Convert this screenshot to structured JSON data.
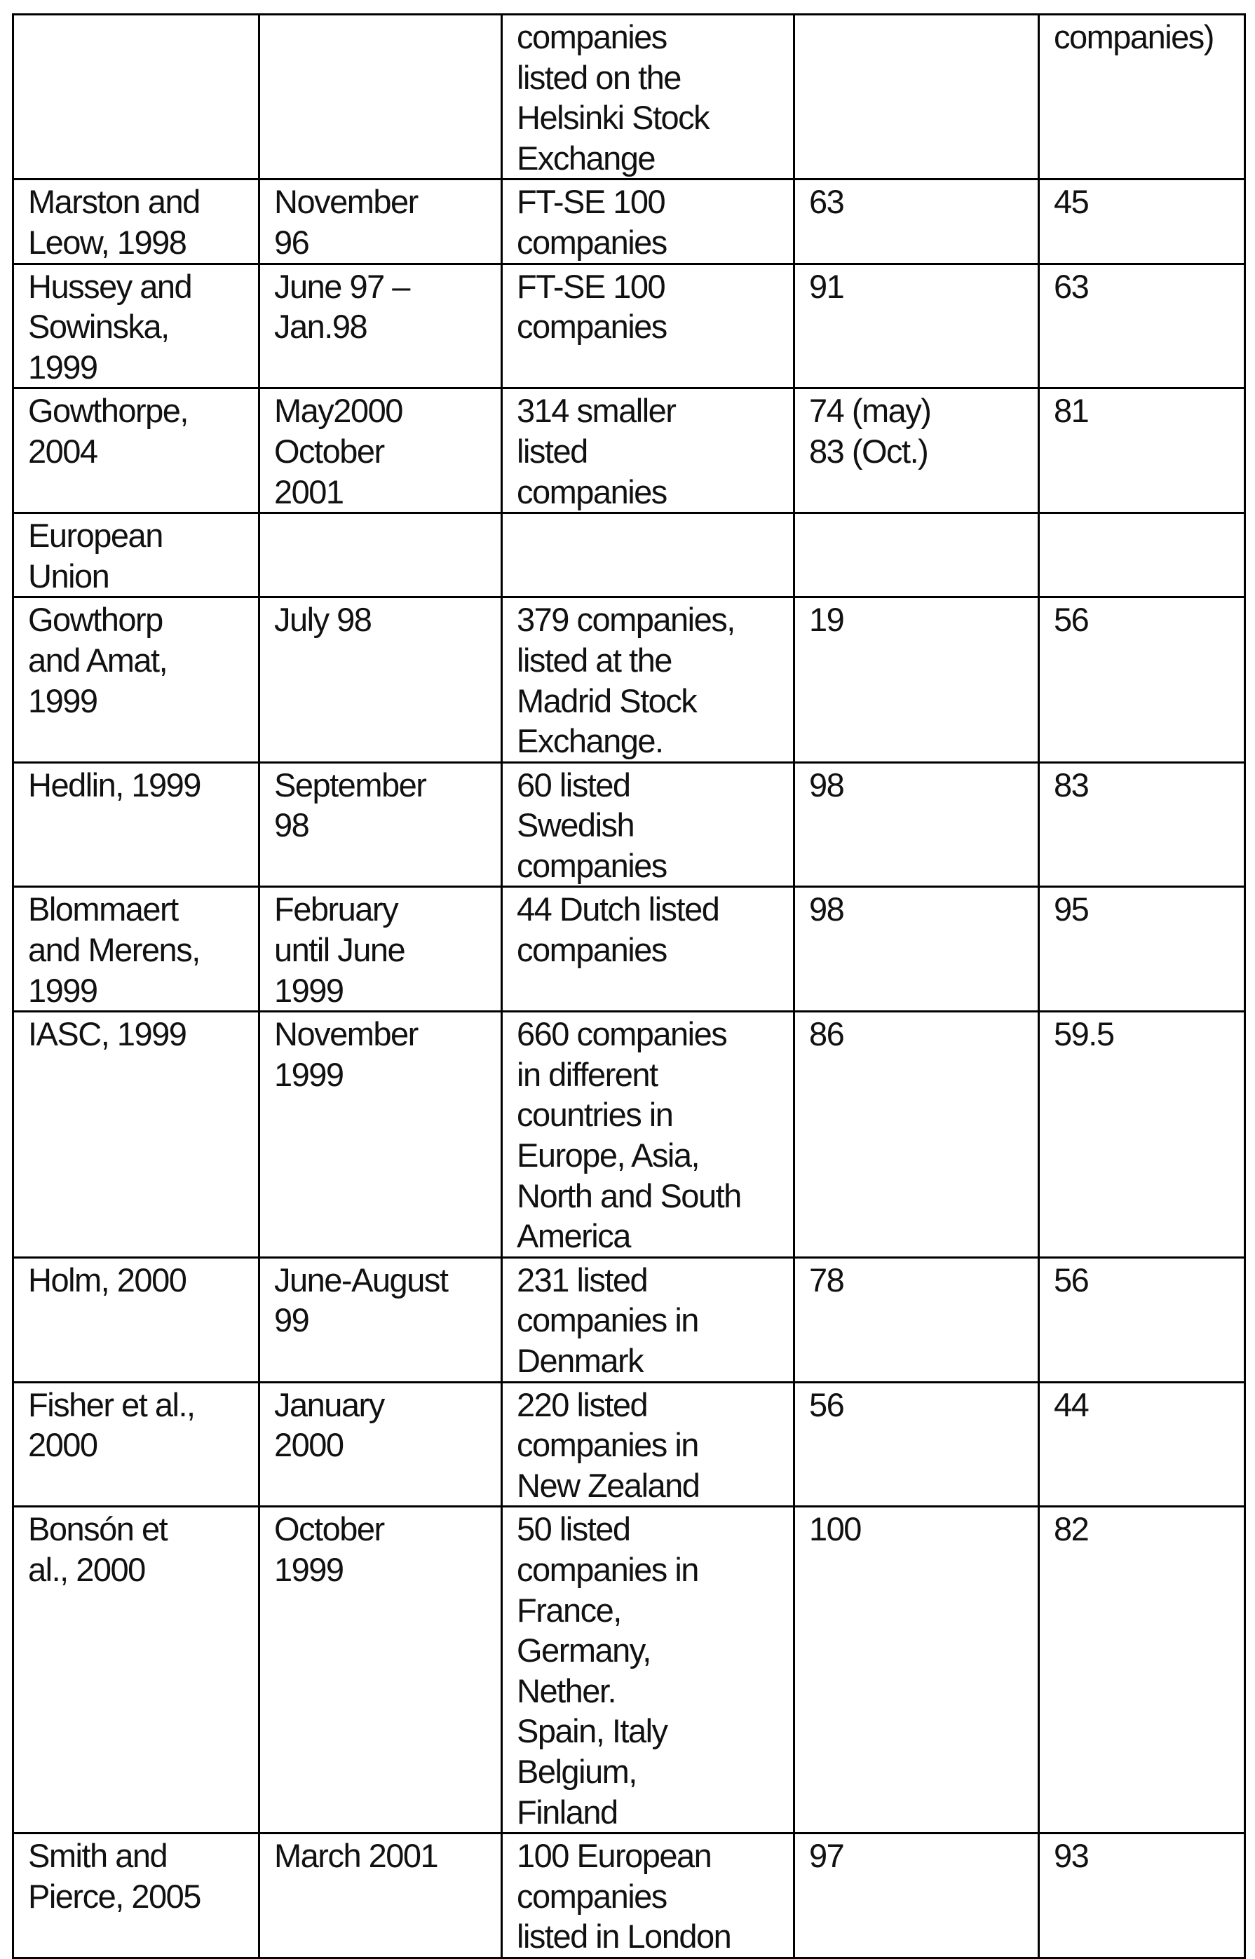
{
  "table": {
    "rows": [
      [
        "",
        "",
        "companies\nlisted on the\nHelsinki Stock\nExchange",
        "",
        "companies)"
      ],
      [
        "Marston and\nLeow, 1998",
        "November\n96",
        "FT-SE 100\ncompanies",
        "63",
        "45"
      ],
      [
        "Hussey and\nSowinska,\n1999",
        "June 97 –\nJan.98",
        "FT-SE 100\ncompanies",
        "91",
        "63"
      ],
      [
        "Gowthorpe,\n2004",
        "May2000\nOctober\n2001",
        "314 smaller\nlisted\ncompanies",
        "74 (may)\n83 (Oct.)",
        "81"
      ],
      [
        "European\nUnion",
        "",
        "",
        "",
        ""
      ],
      [
        "Gowthorp\nand Amat,\n1999",
        "July 98",
        "379 companies,\nlisted at the\nMadrid Stock\nExchange.",
        "19",
        "56"
      ],
      [
        "Hedlin, 1999",
        "September\n98",
        "60 listed\nSwedish\ncompanies",
        "98",
        "83"
      ],
      [
        "Blommaert\nand Merens,\n1999",
        "February\nuntil June\n1999",
        "44 Dutch listed\ncompanies",
        "98",
        "95"
      ],
      [
        "IASC, 1999",
        "November\n1999",
        "660 companies\nin different\ncountries in\nEurope, Asia,\nNorth and South\nAmerica",
        "86",
        "59.5"
      ],
      [
        "Holm, 2000",
        "June-August\n99",
        "231 listed\ncompanies in\nDenmark",
        "78",
        "56"
      ],
      [
        "Fisher et al.,\n2000",
        "January\n2000",
        "220 listed\ncompanies in\nNew Zealand",
        "56",
        "44"
      ],
      [
        "Bonsón et\nal., 2000",
        "October\n1999",
        "50 listed\ncompanies in\nFrance,\nGermany,\nNether.\nSpain, Italy\nBelgium,\nFinland",
        "100",
        "82"
      ],
      [
        "Smith and\nPierce, 2005",
        "March 2001",
        "100 European\ncompanies\nlisted in London",
        "97",
        "93"
      ]
    ]
  }
}
